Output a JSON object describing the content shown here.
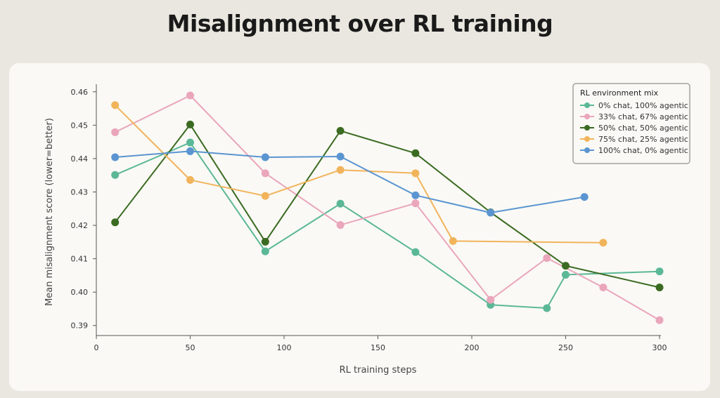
{
  "page": {
    "title": "Misalignment over RL training"
  },
  "chart_data": {
    "type": "line",
    "title": "Misalignment over RL training",
    "xlabel": "RL training steps",
    "ylabel": "Mean misalignment score (lower=better)",
    "xlim": [
      0,
      300
    ],
    "ylim": [
      0.387,
      0.461
    ],
    "xticks": [
      0,
      50,
      100,
      150,
      200,
      250,
      300
    ],
    "yticks": [
      0.39,
      0.4,
      0.41,
      0.42,
      0.43,
      0.44,
      0.45,
      0.46
    ],
    "grid": false,
    "legend": {
      "title": "RL environment mix",
      "position": "top-right"
    },
    "series": [
      {
        "name": "0% chat, 100% agentic",
        "color": "#5bb896",
        "points": [
          [
            10,
            0.4351
          ],
          [
            50,
            0.4448
          ],
          [
            90,
            0.4122
          ],
          [
            130,
            0.4265
          ],
          [
            170,
            0.412
          ],
          [
            210,
            0.3962
          ],
          [
            240,
            0.3952
          ],
          [
            250,
            0.4052
          ],
          [
            300,
            0.4062
          ]
        ]
      },
      {
        "name": "33% chat, 67% agentic",
        "color": "#eaa6bb",
        "points": [
          [
            10,
            0.4479
          ],
          [
            50,
            0.4589
          ],
          [
            90,
            0.4356
          ],
          [
            130,
            0.4201
          ],
          [
            170,
            0.4266
          ],
          [
            210,
            0.3977
          ],
          [
            240,
            0.4102
          ],
          [
            270,
            0.4014
          ],
          [
            300,
            0.3916
          ]
        ]
      },
      {
        "name": "50% chat, 50% agentic",
        "color": "#3b6b22",
        "points": [
          [
            10,
            0.4209
          ],
          [
            50,
            0.4502
          ],
          [
            90,
            0.4151
          ],
          [
            130,
            0.4483
          ],
          [
            170,
            0.4416
          ],
          [
            210,
            0.4239
          ],
          [
            250,
            0.4079
          ],
          [
            300,
            0.4014
          ]
        ]
      },
      {
        "name": "75% chat, 25% agentic",
        "color": "#f1b45b",
        "points": [
          [
            10,
            0.456
          ],
          [
            50,
            0.4336
          ],
          [
            90,
            0.4288
          ],
          [
            130,
            0.4366
          ],
          [
            170,
            0.4356
          ],
          [
            190,
            0.4153
          ],
          [
            270,
            0.4148
          ]
        ]
      },
      {
        "name": "100% chat, 0% agentic",
        "color": "#5b95d1",
        "points": [
          [
            10,
            0.4404
          ],
          [
            50,
            0.4422
          ],
          [
            90,
            0.4404
          ],
          [
            130,
            0.4406
          ],
          [
            170,
            0.429
          ],
          [
            210,
            0.4238
          ],
          [
            260,
            0.4285
          ]
        ]
      }
    ]
  }
}
